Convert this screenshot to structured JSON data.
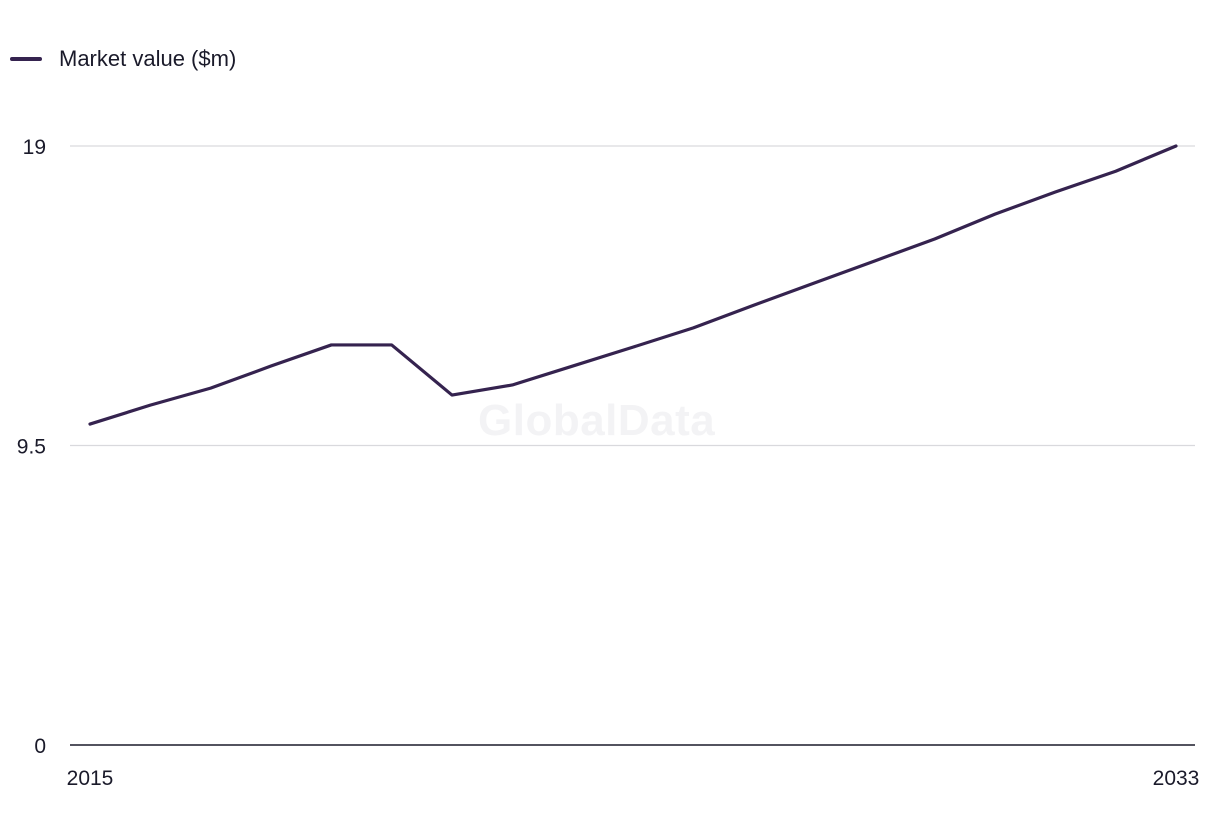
{
  "chart_data": {
    "type": "line",
    "title": "",
    "xlabel": "",
    "ylabel": "",
    "x": [
      2015,
      2016,
      2017,
      2018,
      2019,
      2020,
      2021,
      2022,
      2023,
      2024,
      2025,
      2026,
      2027,
      2028,
      2029,
      2030,
      2031,
      2032,
      2033
    ],
    "series": [
      {
        "name": "Market value ($m)",
        "color": "#35234f",
        "values": [
          10.18,
          10.78,
          11.32,
          12.02,
          12.69,
          12.69,
          11.1,
          11.42,
          12.02,
          12.62,
          13.23,
          13.95,
          14.65,
          15.35,
          16.05,
          16.84,
          17.54,
          18.2,
          19.0
        ]
      }
    ],
    "ylim": [
      0,
      19
    ],
    "yticks": [
      "0",
      "9.5",
      "19"
    ],
    "ytick_values": [
      0,
      9.5,
      19
    ],
    "xticks": [
      "2015",
      "2033"
    ],
    "xtick_values": [
      2015,
      2033
    ],
    "grid": true,
    "legend_position": "top-left",
    "gridline_color": "#d9d9dd"
  },
  "watermark": "GlobalData"
}
